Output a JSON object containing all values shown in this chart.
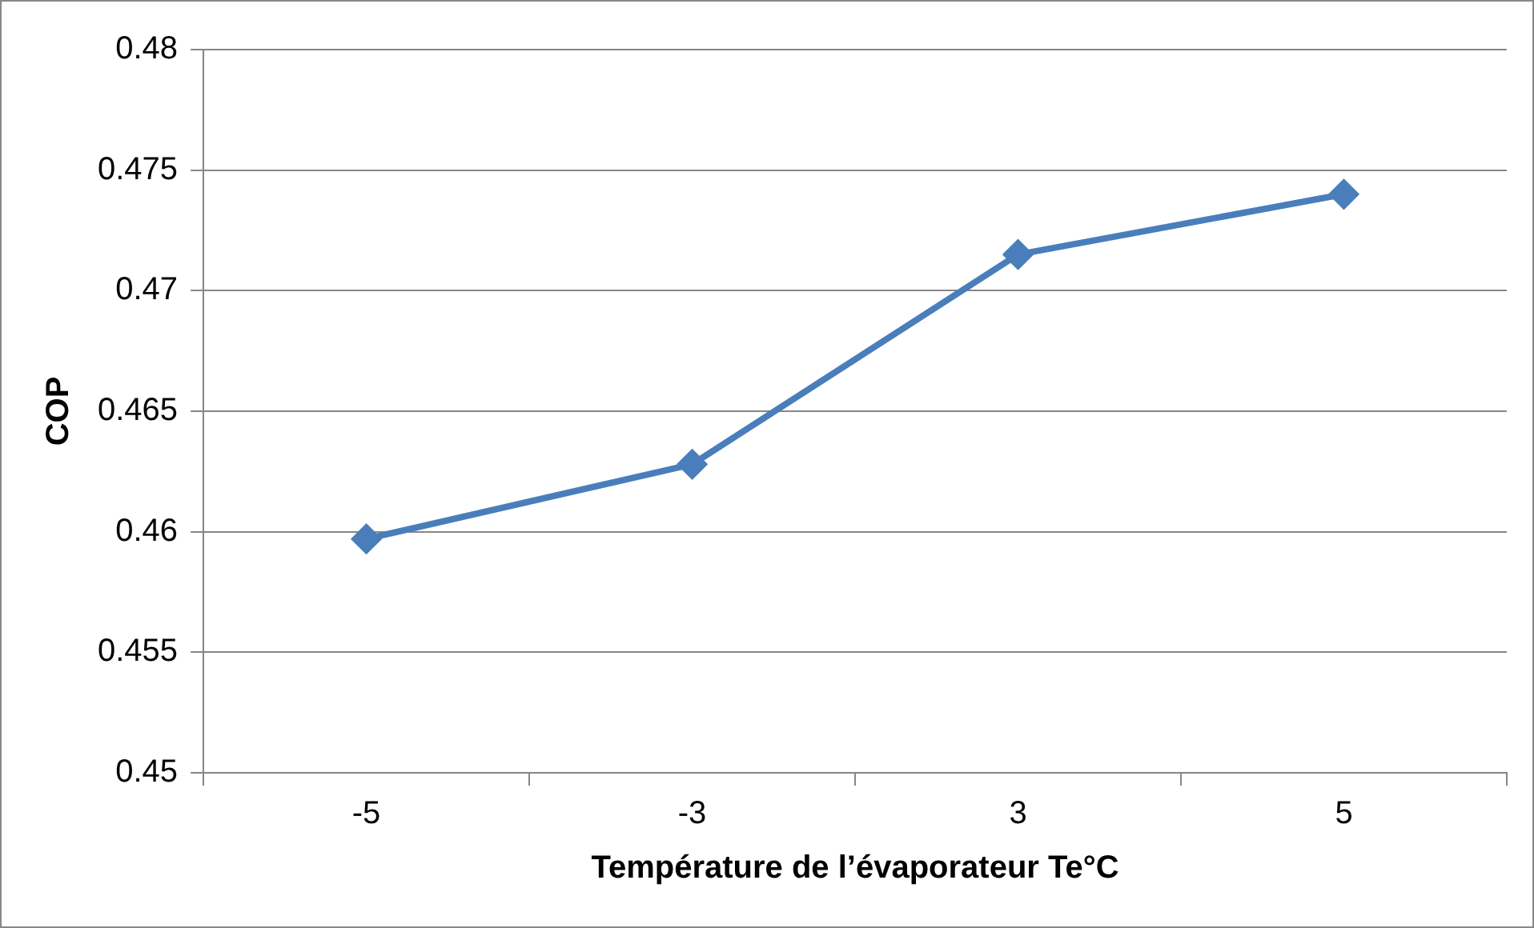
{
  "chart_data": {
    "type": "line",
    "xlabel": "Température de l’évaporateur Te°C",
    "ylabel": "COP",
    "categories": [
      "-5",
      "-3",
      "3",
      "5"
    ],
    "series": [
      {
        "color": "#4a7ebb",
        "values": [
          0.4597,
          0.4628,
          0.4715,
          0.474
        ]
      }
    ],
    "ylim": [
      0.45,
      0.48
    ],
    "yticks": [
      0.45,
      0.455,
      0.46,
      0.465,
      0.47,
      0.475,
      0.48
    ],
    "grid": "y",
    "legend": false,
    "marker": "diamond",
    "line_style": "solid"
  }
}
